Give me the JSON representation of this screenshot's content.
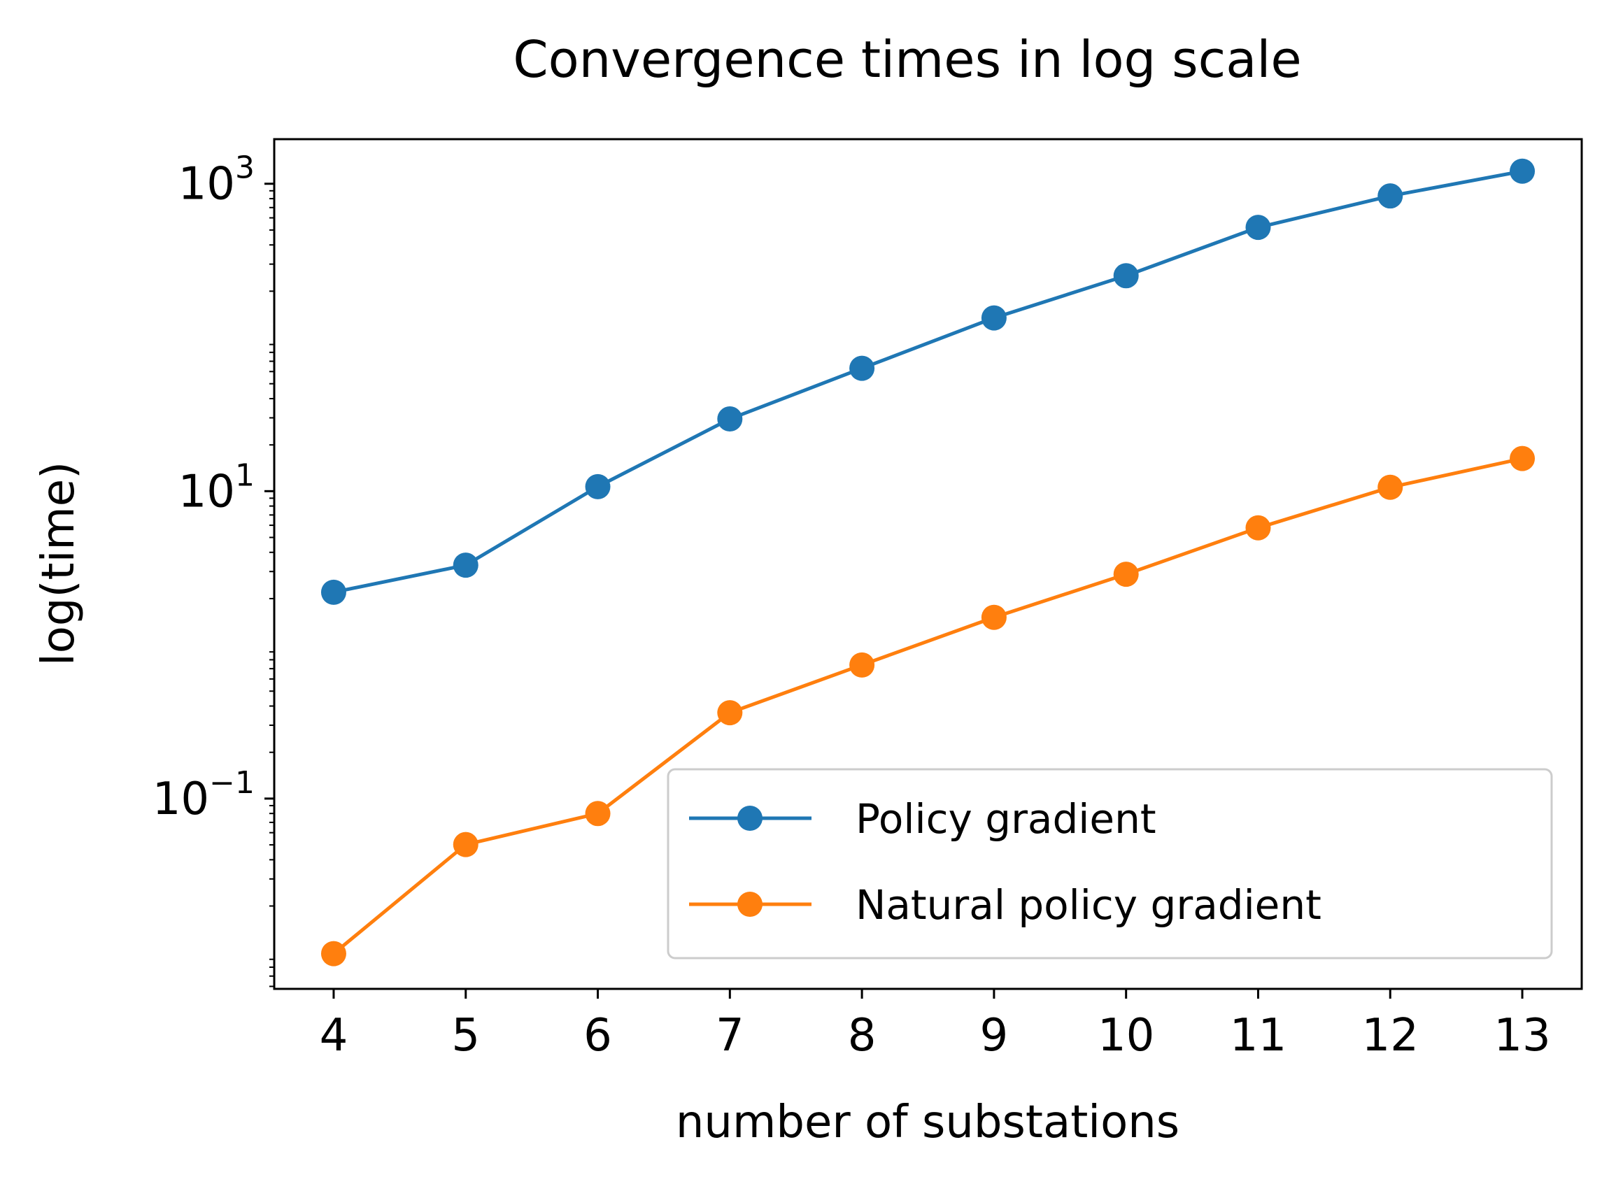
{
  "chart_data": {
    "type": "line",
    "title": "Convergence times in log scale",
    "xlabel": "number of substations",
    "ylabel": "log(time)",
    "x": [
      4,
      5,
      6,
      7,
      8,
      9,
      10,
      11,
      12,
      13
    ],
    "x_tick_labels": [
      "4",
      "5",
      "6",
      "7",
      "8",
      "9",
      "10",
      "11",
      "12",
      "13"
    ],
    "y_scale": "log",
    "ylim": [
      0.00578,
      1950
    ],
    "xlim": [
      3.55,
      13.45
    ],
    "y_ticks": [
      {
        "value": 0.1,
        "base": "10",
        "exp": "−1"
      },
      {
        "value": 10,
        "base": "10",
        "exp": "1"
      },
      {
        "value": 1000,
        "base": "10",
        "exp": "3"
      }
    ],
    "grid": false,
    "legend_position": "lower right",
    "series": [
      {
        "name": "Policy gradient",
        "color": "#1f77b4",
        "marker": "circle",
        "values": [
          2.2,
          3.3,
          10.7,
          29.5,
          63,
          134,
          252,
          520,
          833,
          1207
        ]
      },
      {
        "name": "Natural policy gradient",
        "color": "#ff7f0e",
        "marker": "circle",
        "values": [
          0.0098,
          0.0502,
          0.0799,
          0.362,
          0.74,
          1.51,
          2.88,
          5.77,
          10.6,
          16.3
        ]
      }
    ]
  }
}
